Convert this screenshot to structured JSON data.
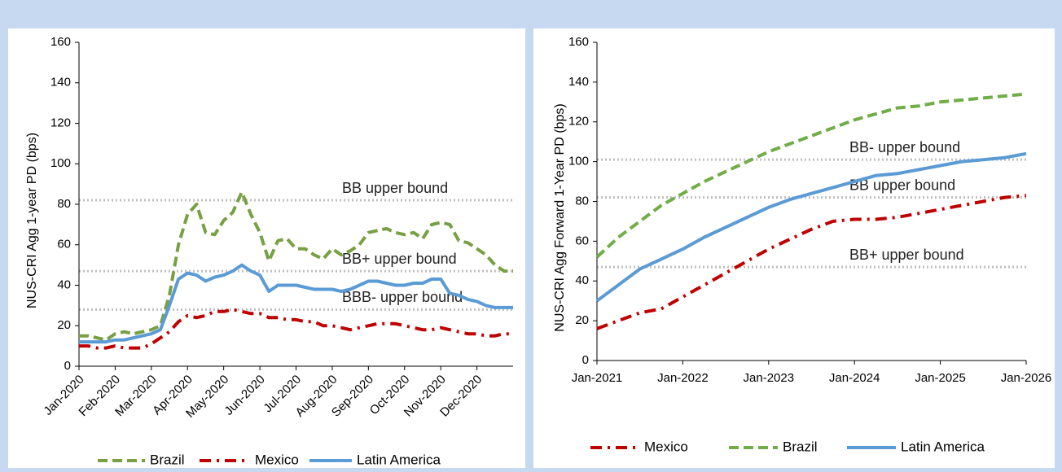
{
  "chart_data": [
    {
      "type": "line",
      "y_label": "NUS-CRI  Agg 1-year PD (bps)",
      "x": [
        0,
        0.25,
        0.5,
        0.75,
        1,
        1.25,
        1.5,
        1.75,
        2,
        2.25,
        2.5,
        2.75,
        3,
        3.25,
        3.5,
        3.75,
        4,
        4.25,
        4.5,
        4.75,
        5,
        5.25,
        5.5,
        5.75,
        6,
        6.25,
        6.5,
        6.75,
        7,
        7.25,
        7.5,
        7.75,
        8,
        8.25,
        8.5,
        8.75,
        9,
        9.25,
        9.5,
        9.75,
        10,
        10.25,
        10.5,
        10.75,
        11,
        11.25,
        11.5,
        11.75,
        12
      ],
      "xlim": [
        0,
        12
      ],
      "xticks": [
        {
          "value": 0,
          "label": "Jan-2020"
        },
        {
          "value": 1,
          "label": "Feb-2020"
        },
        {
          "value": 2,
          "label": "Mar-2020"
        },
        {
          "value": 3,
          "label": "Apr-2020"
        },
        {
          "value": 4,
          "label": "May-2020"
        },
        {
          "value": 5,
          "label": "Jun-2020"
        },
        {
          "value": 6,
          "label": "Jul-2020"
        },
        {
          "value": 7,
          "label": "Aug-2020"
        },
        {
          "value": 8,
          "label": "Sep-2020"
        },
        {
          "value": 9,
          "label": "Oct-2020"
        },
        {
          "value": 10,
          "label": "Nov-2020"
        },
        {
          "value": 11,
          "label": "Dec-2020"
        }
      ],
      "ylim": [
        0,
        160
      ],
      "yticks": [
        0,
        20,
        40,
        60,
        80,
        100,
        120,
        140,
        160
      ],
      "reference_lines": [
        {
          "value": 82,
          "label": "BB upper bound"
        },
        {
          "value": 47,
          "label": "BB+ upper bound"
        },
        {
          "value": 28,
          "label": "BBB- upper bound"
        }
      ],
      "series": [
        {
          "name": "Brazil",
          "color": "#77a043",
          "line_style": "dashed",
          "values": [
            15,
            15,
            14,
            13,
            16,
            17,
            16,
            17,
            18,
            20,
            35,
            60,
            75,
            80,
            66,
            65,
            72,
            76,
            86,
            75,
            66,
            52,
            62,
            63,
            58,
            58,
            55,
            53,
            58,
            55,
            57,
            60,
            66,
            67,
            68,
            66,
            65,
            66,
            63,
            70,
            71,
            70,
            62,
            61,
            58,
            55,
            50,
            47,
            47
          ]
        },
        {
          "name": "Mexico",
          "color": "#c00000",
          "line_style": "dashdot",
          "values": [
            10,
            10,
            9,
            9,
            10,
            9,
            9,
            9,
            11,
            14,
            17,
            22,
            25,
            24,
            25,
            27,
            27,
            28,
            27,
            26,
            26,
            24,
            24,
            23,
            23,
            22,
            22,
            20,
            20,
            19,
            18,
            19,
            20,
            21,
            21,
            21,
            20,
            19,
            18,
            18,
            19,
            18,
            17,
            16,
            16,
            15,
            15,
            16,
            16
          ]
        },
        {
          "name": "Latin America",
          "color": "#5b9bd5",
          "line_style": "solid",
          "values": [
            12,
            12,
            12,
            12,
            13,
            13,
            14,
            15,
            16,
            18,
            30,
            43,
            46,
            45,
            42,
            44,
            45,
            47,
            50,
            47,
            45,
            37,
            40,
            40,
            40,
            39,
            38,
            38,
            38,
            37,
            38,
            40,
            42,
            42,
            41,
            40,
            40,
            41,
            41,
            43,
            43,
            36,
            35,
            33,
            32,
            30,
            29,
            29,
            29
          ]
        }
      ]
    },
    {
      "type": "line",
      "y_label": "NUS-CRI  Agg Forward 1-Year PD (bps)",
      "x": [
        2021,
        2021.25,
        2021.5,
        2021.75,
        2022,
        2022.25,
        2022.5,
        2022.75,
        2023,
        2023.25,
        2023.5,
        2023.75,
        2024,
        2024.25,
        2024.5,
        2024.75,
        2025,
        2025.25,
        2025.5,
        2025.75,
        2026
      ],
      "xlim": [
        2021,
        2026
      ],
      "xticks": [
        {
          "value": 2021,
          "label": "Jan-2021"
        },
        {
          "value": 2022,
          "label": "Jan-2022"
        },
        {
          "value": 2023,
          "label": "Jan-2023"
        },
        {
          "value": 2024,
          "label": "Jan-2024"
        },
        {
          "value": 2025,
          "label": "Jan-2025"
        },
        {
          "value": 2026,
          "label": "Jan-2026"
        }
      ],
      "ylim": [
        0,
        160
      ],
      "yticks": [
        0,
        20,
        40,
        60,
        80,
        100,
        120,
        140,
        160
      ],
      "reference_lines": [
        {
          "value": 101,
          "label": "BB- upper bound"
        },
        {
          "value": 82,
          "label": "BB upper bound"
        },
        {
          "value": 47,
          "label": "BB+ upper bound"
        }
      ],
      "series": [
        {
          "name": "Mexico",
          "color": "#c00000",
          "line_style": "dashdot",
          "values": [
            16,
            20,
            24,
            26,
            32,
            38,
            44,
            50,
            56,
            61,
            66,
            70,
            71,
            71,
            72,
            74,
            76,
            78,
            80,
            82,
            83
          ]
        },
        {
          "name": "Brazil",
          "color": "#70ad47",
          "line_style": "dashed",
          "values": [
            52,
            62,
            70,
            78,
            84,
            90,
            95,
            100,
            105,
            109,
            113,
            117,
            121,
            124,
            127,
            128,
            130,
            131,
            132,
            133,
            134
          ]
        },
        {
          "name": "Latin America",
          "color": "#5b9bd5",
          "line_style": "solid",
          "values": [
            30,
            38,
            46,
            51,
            56,
            62,
            67,
            72,
            77,
            81,
            84,
            87,
            90,
            93,
            94,
            96,
            98,
            100,
            101,
            102,
            104
          ]
        }
      ]
    }
  ]
}
